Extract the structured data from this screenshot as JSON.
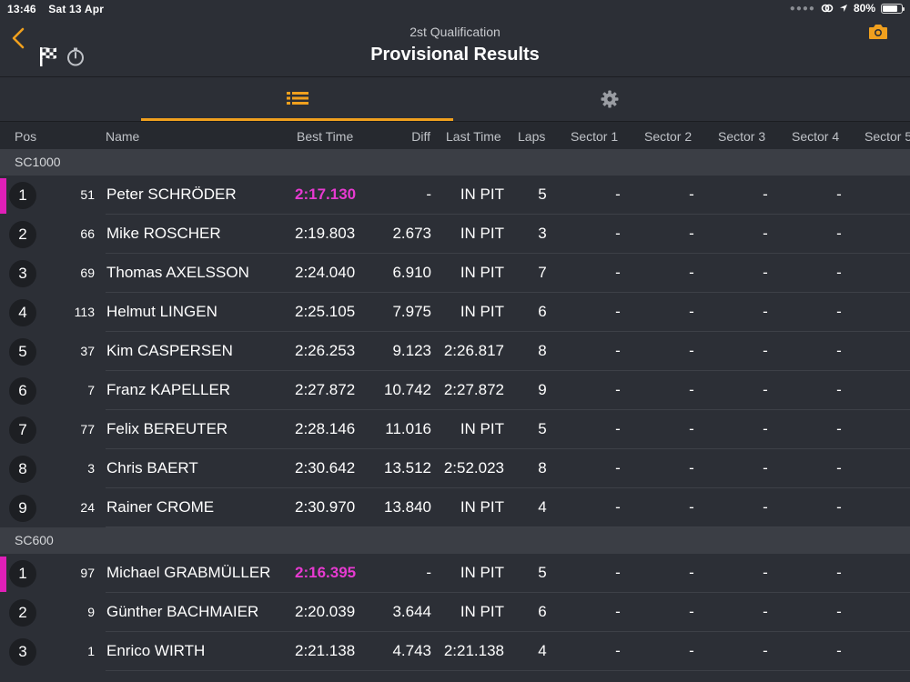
{
  "status_bar": {
    "time": "13:46",
    "date": "Sat 13 Apr",
    "battery": "80%",
    "battery_level": 0.8
  },
  "header": {
    "subtitle": "2st Qualification",
    "title": "Provisional Results"
  },
  "icons": {
    "back": "chevron-left-icon",
    "flag": "checkered-flag-icon",
    "stopwatch": "stopwatch-icon",
    "camera": "camera-icon",
    "list": "list-icon",
    "settings": "gear-icon"
  },
  "colors": {
    "accent": "#f0a01e",
    "leader": "#e01fb8",
    "best_time": "#e73ad1"
  },
  "columns": {
    "pos": "Pos",
    "name": "Name",
    "best_time": "Best Time",
    "diff": "Diff",
    "last_time": "Last Time",
    "laps": "Laps",
    "sector1": "Sector 1",
    "sector2": "Sector 2",
    "sector3": "Sector 3",
    "sector4": "Sector 4",
    "sector5": "Sector 5"
  },
  "groups": [
    {
      "name": "SC1000",
      "rows": [
        {
          "pos": "1",
          "num": "51",
          "name": "Peter SCHRÖDER",
          "best": "2:17.130",
          "diff": "-",
          "last": "IN PIT",
          "laps": "5",
          "s1": "-",
          "s2": "-",
          "s3": "-",
          "s4": "-",
          "leader": true
        },
        {
          "pos": "2",
          "num": "66",
          "name": "Mike ROSCHER",
          "best": "2:19.803",
          "diff": "2.673",
          "last": "IN PIT",
          "laps": "3",
          "s1": "-",
          "s2": "-",
          "s3": "-",
          "s4": "-"
        },
        {
          "pos": "3",
          "num": "69",
          "name": "Thomas AXELSSON",
          "best": "2:24.040",
          "diff": "6.910",
          "last": "IN PIT",
          "laps": "7",
          "s1": "-",
          "s2": "-",
          "s3": "-",
          "s4": "-"
        },
        {
          "pos": "4",
          "num": "113",
          "name": "Helmut LINGEN",
          "best": "2:25.105",
          "diff": "7.975",
          "last": "IN PIT",
          "laps": "6",
          "s1": "-",
          "s2": "-",
          "s3": "-",
          "s4": "-"
        },
        {
          "pos": "5",
          "num": "37",
          "name": "Kim CASPERSEN",
          "best": "2:26.253",
          "diff": "9.123",
          "last": "2:26.817",
          "laps": "8",
          "s1": "-",
          "s2": "-",
          "s3": "-",
          "s4": "-"
        },
        {
          "pos": "6",
          "num": "7",
          "name": "Franz KAPELLER",
          "best": "2:27.872",
          "diff": "10.742",
          "last": "2:27.872",
          "laps": "9",
          "s1": "-",
          "s2": "-",
          "s3": "-",
          "s4": "-"
        },
        {
          "pos": "7",
          "num": "77",
          "name": "Felix BEREUTER",
          "best": "2:28.146",
          "diff": "11.016",
          "last": "IN PIT",
          "laps": "5",
          "s1": "-",
          "s2": "-",
          "s3": "-",
          "s4": "-"
        },
        {
          "pos": "8",
          "num": "3",
          "name": "Chris BAERT",
          "best": "2:30.642",
          "diff": "13.512",
          "last": "2:52.023",
          "laps": "8",
          "s1": "-",
          "s2": "-",
          "s3": "-",
          "s4": "-"
        },
        {
          "pos": "9",
          "num": "24",
          "name": "Rainer CROME",
          "best": "2:30.970",
          "diff": "13.840",
          "last": "IN PIT",
          "laps": "4",
          "s1": "-",
          "s2": "-",
          "s3": "-",
          "s4": "-"
        }
      ]
    },
    {
      "name": "SC600",
      "rows": [
        {
          "pos": "1",
          "num": "97",
          "name": "Michael GRABMÜLLER",
          "best": "2:16.395",
          "diff": "-",
          "last": "IN PIT",
          "laps": "5",
          "s1": "-",
          "s2": "-",
          "s3": "-",
          "s4": "-",
          "leader": true
        },
        {
          "pos": "2",
          "num": "9",
          "name": "Günther BACHMAIER",
          "best": "2:20.039",
          "diff": "3.644",
          "last": "IN PIT",
          "laps": "6",
          "s1": "-",
          "s2": "-",
          "s3": "-",
          "s4": "-"
        },
        {
          "pos": "3",
          "num": "1",
          "name": "Enrico WIRTH",
          "best": "2:21.138",
          "diff": "4.743",
          "last": "2:21.138",
          "laps": "4",
          "s1": "-",
          "s2": "-",
          "s3": "-",
          "s4": "-"
        }
      ]
    }
  ]
}
